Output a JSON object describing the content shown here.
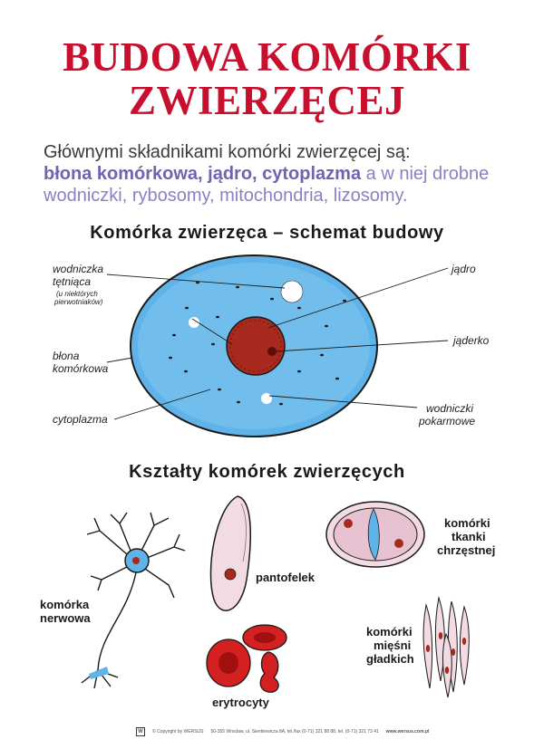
{
  "header": {
    "title_line1": "BUDOWA KOMÓRKI",
    "title_line2": "ZWIERZĘCEJ"
  },
  "intro": {
    "line1": "Głównymi składnikami komórki zwierzęcej są:",
    "highlight": "błona komórkowa, jądro, cytoplazma",
    "line2_rest": " a w niej drobne",
    "line3": "wodniczki, rybosomy, mitochondria, lizosomy."
  },
  "schema": {
    "title": "Komórka zwierzęca – schemat budowy",
    "labels": {
      "wodniczka_1": "wodniczka",
      "wodniczka_2": "tętniąca",
      "wodniczka_note_1": "(u niektórych",
      "wodniczka_note_2": "pierwotniaków)",
      "blona_1": "błona",
      "blona_2": "komórkowa",
      "cytoplazma": "cytoplazma",
      "jadro": "jądro",
      "jaderko": "jąderko",
      "pokarmowe_1": "wodniczki",
      "pokarmowe_2": "pokarmowe"
    }
  },
  "shapes": {
    "title": "Kształty komórek zwierzęcych",
    "nerwowa_1": "komórka",
    "nerwowa_2": "nerwowa",
    "pantofelek": "pantofelek",
    "erytrocyty": "erytrocyty",
    "chrzestna_1": "komórki",
    "chrzestna_2": "tkanki",
    "chrzestna_3": "chrzęstnej",
    "miesnie_1": "komórki",
    "miesnie_2": "mięśni",
    "miesnie_3": "gładkich"
  },
  "footer": {
    "logo": "W",
    "copyright": "© Copyright by WERSUS",
    "address": "50-355 Wrocław, ul. Sienkiewicza 8A, tel./fax (0-71) 321 88 88, tel. (0-71) 321 73 41",
    "url": "www.wersus.com.pl"
  },
  "colors": {
    "title": "#c8102e",
    "highlight": "#6f64b2",
    "cytoplasm": "#5fb3e8",
    "nucleus": "#a82a1e",
    "cell_pink": "#f3dbe4"
  }
}
